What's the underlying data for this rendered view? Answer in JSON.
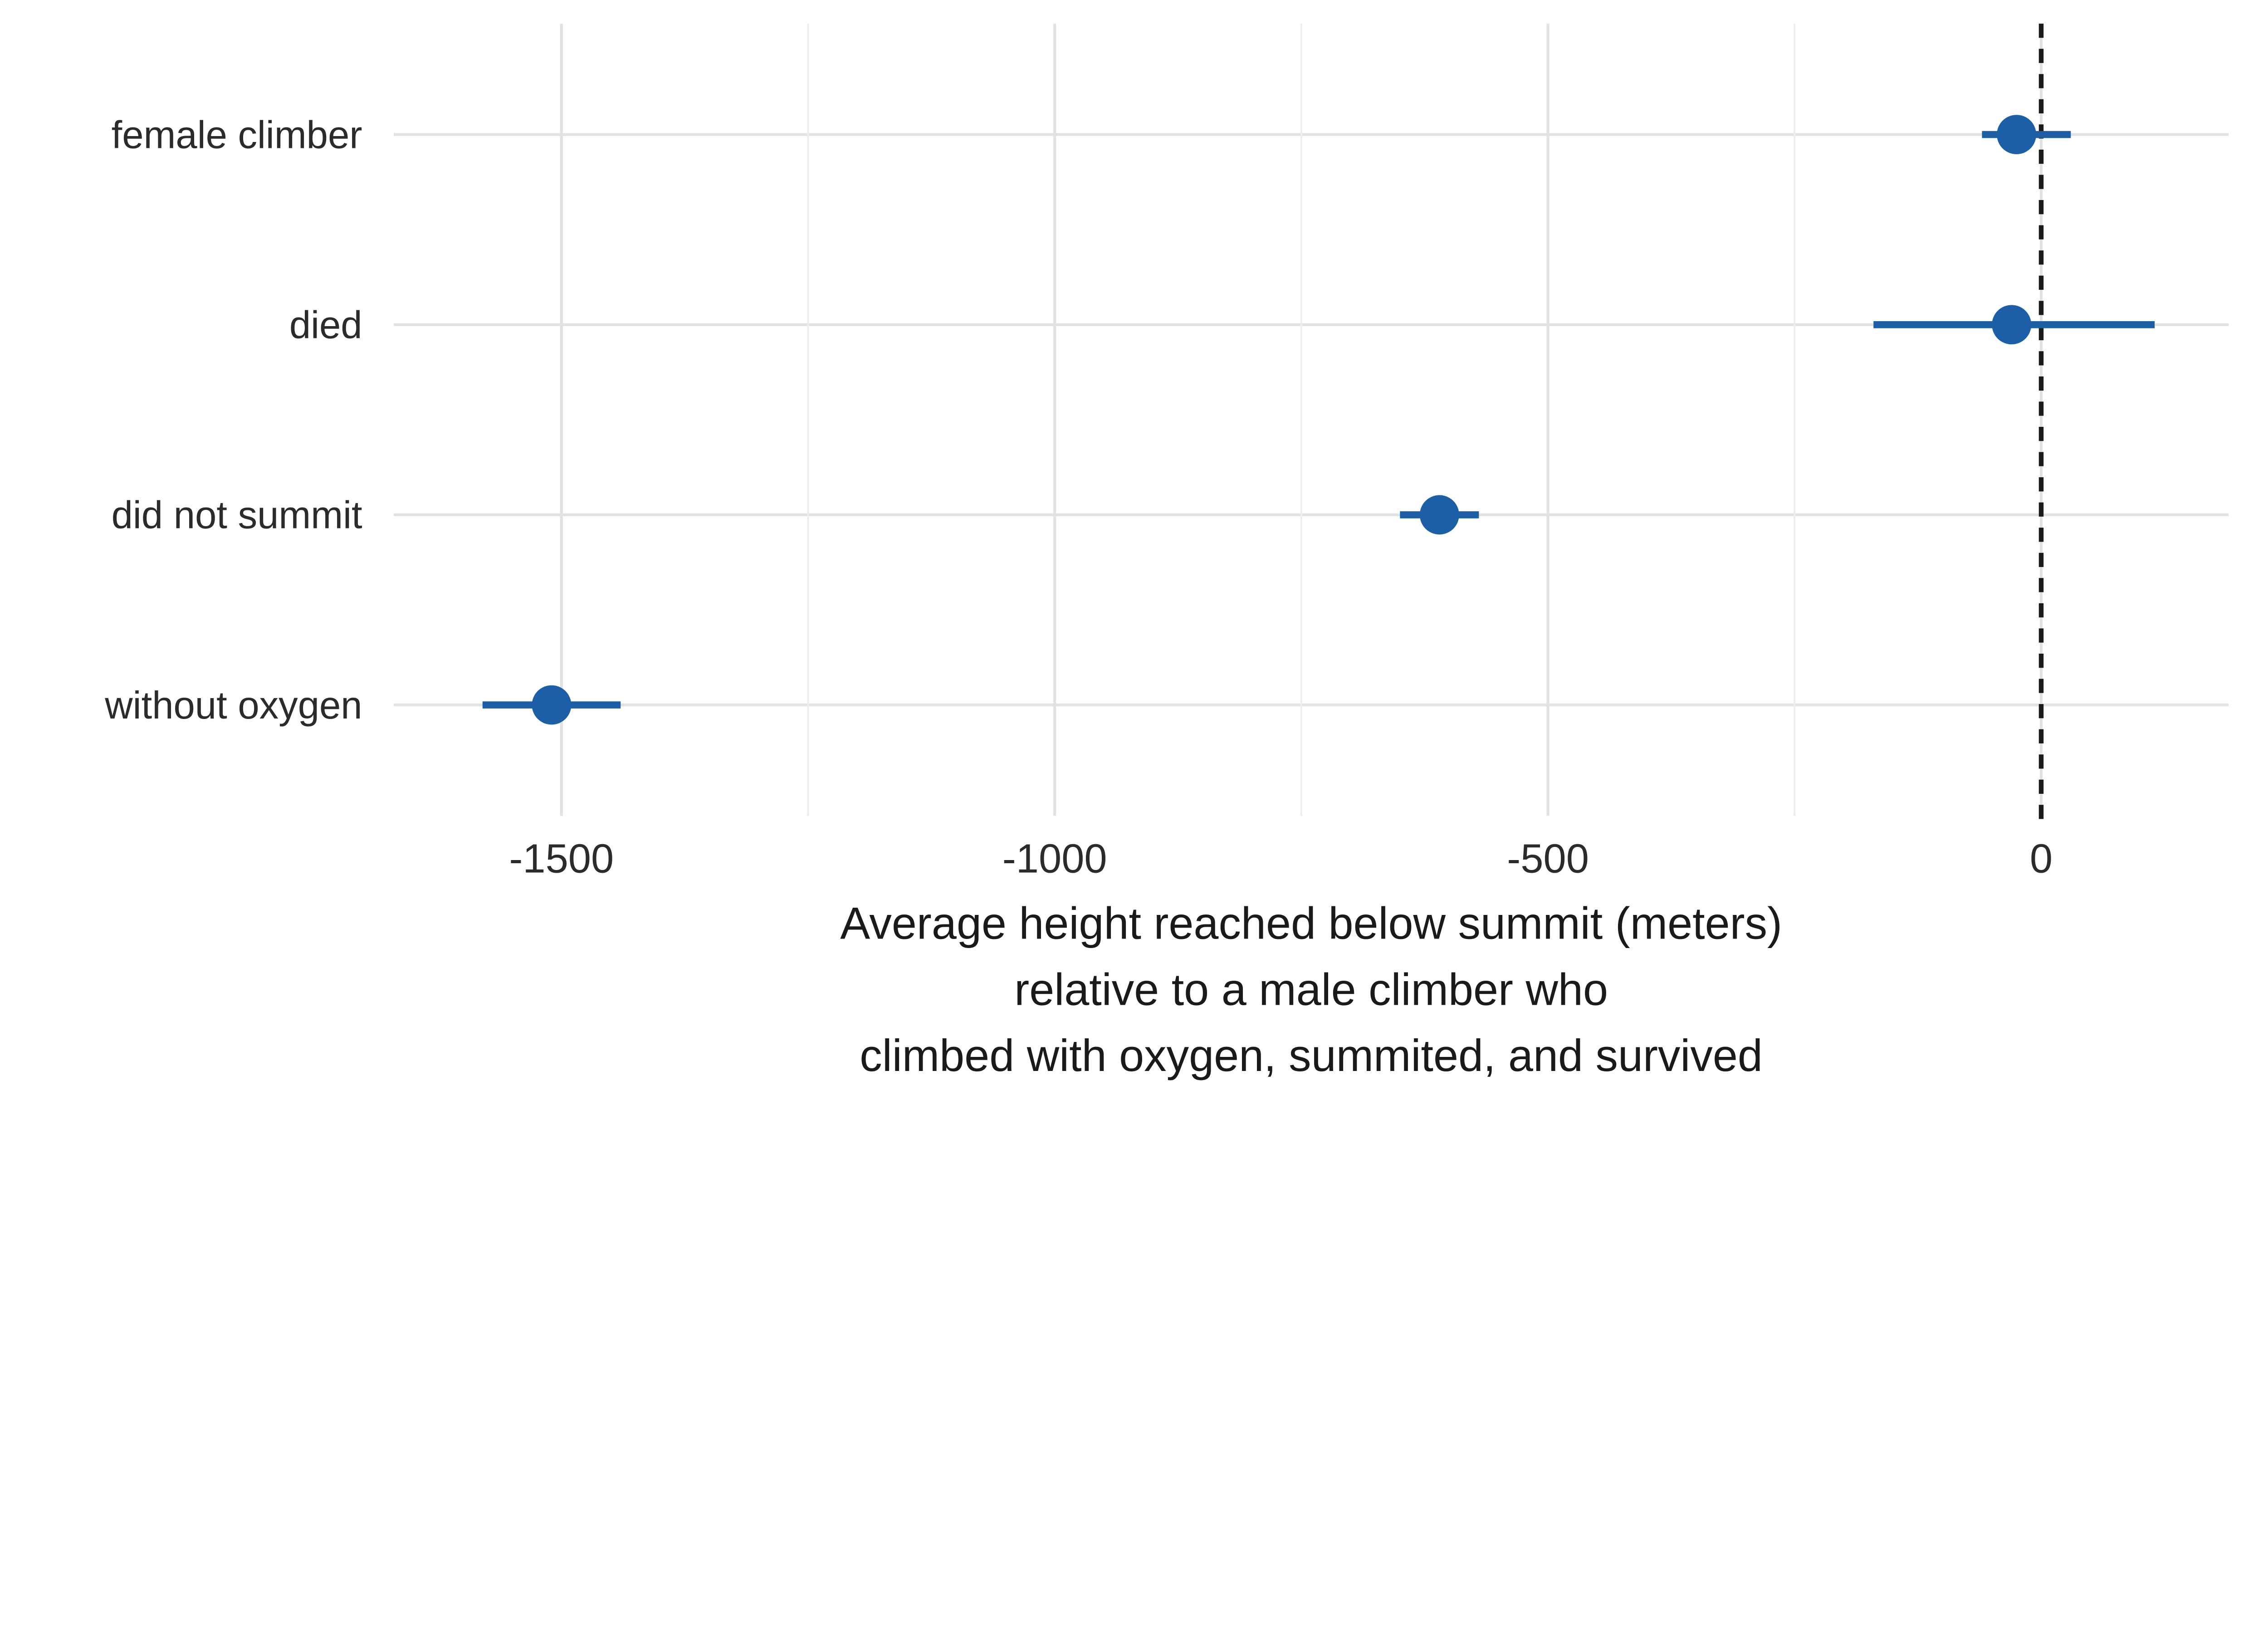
{
  "chart_data": {
    "type": "scatter",
    "subtype": "dot-whisker-coefficient-plot",
    "title": "",
    "categories": [
      "female climber",
      "died",
      "did not summit",
      "without oxygen"
    ],
    "series": [
      {
        "name": "estimate",
        "points": [
          {
            "label": "female climber",
            "estimate": -25,
            "ci_low": -60,
            "ci_high": 30
          },
          {
            "label": "died",
            "estimate": -30,
            "ci_low": -170,
            "ci_high": 115
          },
          {
            "label": "did not summit",
            "estimate": -610,
            "ci_low": -650,
            "ci_high": -570
          },
          {
            "label": "without oxygen",
            "estimate": -1510,
            "ci_low": -1580,
            "ci_high": -1440
          }
        ]
      }
    ],
    "xlabel_lines": [
      "Average height reached below summit (meters)",
      "relative to a male climber who",
      "climbed with oxygen, summited, and survived"
    ],
    "ylabel": "",
    "x_ticks": [
      -1500,
      -1000,
      -500,
      0
    ],
    "x_tick_labels": [
      "-1500",
      "-1000",
      "-500",
      "0"
    ],
    "x_minor_ticks": [
      -1250,
      -750,
      -250
    ],
    "xlim": [
      -1670,
      190
    ],
    "reference_line_x": 0,
    "grid": true,
    "legend": "none",
    "colors": {
      "point": "#1d5fa6",
      "interval": "#1d5fa6",
      "grid_major": "#e2e2e2",
      "grid_minor": "#ededed",
      "reference_line": "#1a1a1a",
      "text": "#2b2b2b",
      "axis_title": "#1a1a1a",
      "background": "#ffffff"
    }
  }
}
